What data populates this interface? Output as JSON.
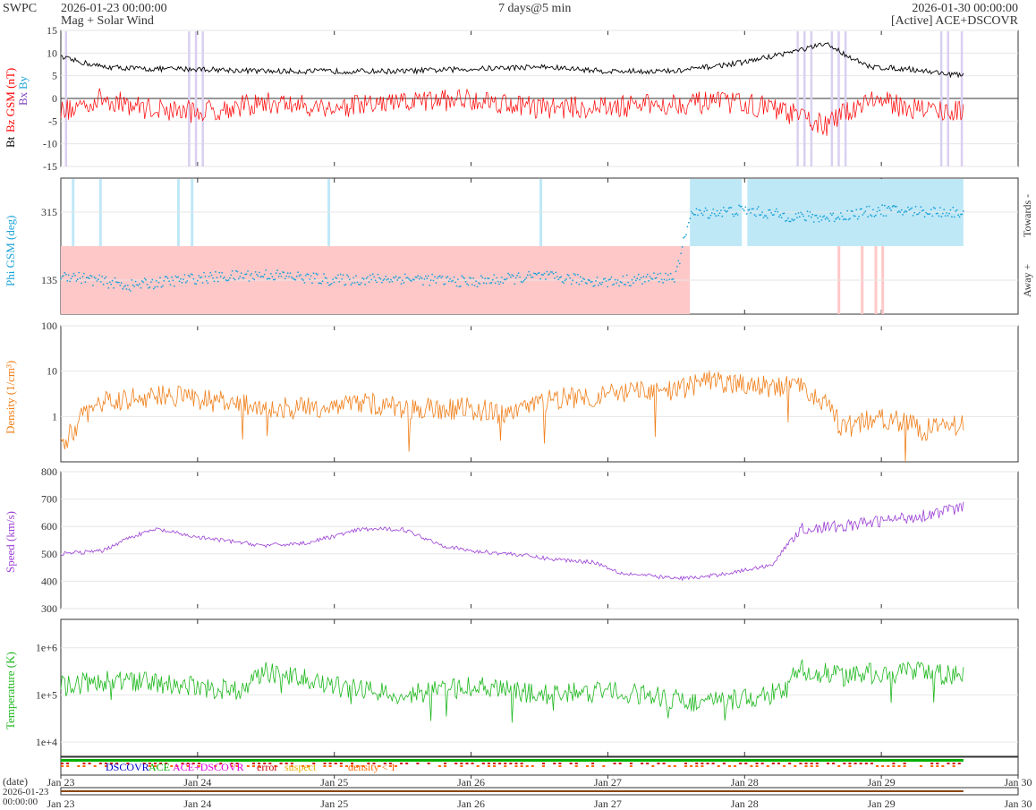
{
  "header": {
    "brand": "SWPC",
    "start_time": "2026-01-23 00:00:00",
    "product": "Mag + Solar Wind",
    "span": "7 days@5 min",
    "end_time": "2026-01-30 00:00:00",
    "source": "[Active] ACE+DSCOVR"
  },
  "colors": {
    "bt": "#000000",
    "bz": "#ff0000",
    "bx": "#7b3fbf",
    "by": "#1ea3d8",
    "phi": "#1ea3d8",
    "towards_shade": "#bfe8f7",
    "away_shade": "#ffc8c8",
    "density": "#f07f1a",
    "speed": "#9b3fd6",
    "temperature": "#1fb81f",
    "dscovr": "#0000cc",
    "ace": "#00b000",
    "ace_dscovr": "#e000e0",
    "error": "#cc0000",
    "suspect": "#e8b000",
    "density_lt1": "#ff6600"
  },
  "chart_data": [
    {
      "type": "line",
      "panel": "mag",
      "ylabel_parts": [
        "Bt",
        "Bz GSM (nT)",
        "Bx",
        "By"
      ],
      "ylim": [
        -15,
        15
      ],
      "yticks": [
        -15,
        -10,
        -5,
        0,
        5,
        10,
        15
      ],
      "grid": true,
      "series": [
        {
          "name": "Bt",
          "x_days": [
            0,
            0.3,
            0.6,
            1,
            1.5,
            2,
            2.5,
            3,
            3.5,
            4,
            4.5,
            5,
            5.3,
            5.6,
            5.9,
            6.2,
            6.6
          ],
          "values": [
            9,
            7,
            6.5,
            6.5,
            6,
            6,
            6,
            6.5,
            7,
            6,
            6,
            8,
            10,
            12,
            7,
            6.5,
            5
          ]
        },
        {
          "name": "Bz GSM",
          "x_days": [
            0,
            0.3,
            0.6,
            1,
            1.5,
            2,
            2.5,
            3,
            3.5,
            4,
            4.5,
            5,
            5.3,
            5.6,
            5.9,
            6.2,
            6.6
          ],
          "values": [
            -3,
            0,
            -2,
            -3,
            -1,
            -2,
            -1,
            0,
            -2,
            -2,
            -1,
            -1,
            -3,
            -6,
            0,
            -2,
            -3
          ]
        }
      ]
    },
    {
      "type": "scatter",
      "panel": "phi",
      "ylabel": "Phi GSM (deg)",
      "ylim": [
        45,
        405
      ],
      "yticks": [
        135,
        315
      ],
      "right_labels": [
        "Towards -",
        "Away +"
      ],
      "sector_boundaries_days": [
        4.6,
        4.98,
        5.02,
        6.6
      ],
      "x_days": [
        0,
        0.5,
        1,
        1.5,
        2,
        2.5,
        3,
        3.5,
        4,
        4.5,
        4.6,
        5,
        5.3,
        5.6,
        6,
        6.5
      ],
      "values": [
        150,
        120,
        140,
        150,
        135,
        140,
        130,
        145,
        130,
        145,
        310,
        320,
        305,
        300,
        320,
        315
      ]
    },
    {
      "type": "line",
      "panel": "density",
      "ylabel": "Density (1/cm³)",
      "scale": "log",
      "ylim": [
        0.1,
        100
      ],
      "yticks": [
        1,
        10,
        100
      ],
      "x_days": [
        0,
        0.1,
        0.3,
        0.5,
        0.8,
        1.2,
        1.5,
        1.8,
        2.2,
        2.5,
        3,
        3.3,
        3.6,
        4,
        4.3,
        4.5,
        4.7,
        5,
        5.2,
        5.4,
        5.7,
        6,
        6.3,
        6.6
      ],
      "values": [
        0.2,
        0.5,
        2,
        2.5,
        3,
        2,
        1.5,
        1.5,
        2,
        1.5,
        1.5,
        1,
        2.5,
        3,
        3.5,
        3.5,
        6,
        5,
        4.5,
        4.5,
        0.5,
        1,
        0.5,
        0.7
      ]
    },
    {
      "type": "line",
      "panel": "speed",
      "ylabel": "Speed (km/s)",
      "ylim": [
        300,
        800
      ],
      "yticks": [
        300,
        400,
        500,
        600,
        700,
        800
      ],
      "x_days": [
        0,
        0.3,
        0.5,
        0.7,
        1,
        1.5,
        1.8,
        2.2,
        2.5,
        2.8,
        3,
        3.3,
        3.6,
        3.9,
        4.1,
        4.3,
        4.5,
        4.7,
        5,
        5.2,
        5.4,
        5.7,
        6,
        6.3,
        6.6
      ],
      "values": [
        500,
        510,
        560,
        590,
        560,
        530,
        540,
        590,
        590,
        530,
        510,
        500,
        480,
        470,
        430,
        420,
        410,
        415,
        440,
        460,
        590,
        600,
        620,
        640,
        670
      ]
    },
    {
      "type": "line",
      "panel": "temperature",
      "ylabel": "Temperature (K)",
      "scale": "log",
      "ylim": [
        5000,
        4000000
      ],
      "yticks": [
        10000,
        100000,
        1000000
      ],
      "ytick_labels": [
        "1e+4",
        "1e+5",
        "1e+6"
      ],
      "x_days": [
        0,
        0.3,
        0.5,
        1,
        1.3,
        1.5,
        2,
        2.5,
        3,
        3.5,
        4,
        4.3,
        4.6,
        5,
        5.3,
        5.4,
        5.7,
        6,
        6.3,
        6.6
      ],
      "values": [
        150000,
        200000,
        200000,
        150000,
        120000,
        300000,
        150000,
        100000,
        150000,
        100000,
        120000,
        100000,
        70000,
        80000,
        120000,
        350000,
        250000,
        300000,
        300000,
        250000
      ]
    },
    {
      "type": "bar",
      "panel": "source_flags",
      "legend": [
        "DSCOVR",
        "ACE",
        "ACE+DSCOVR",
        "error",
        "suspect",
        "density < 1"
      ],
      "x_days_end": 6.6
    }
  ],
  "xaxis": {
    "tick_labels": [
      "Jan 23",
      "Jan 24",
      "Jan 25",
      "Jan 26",
      "Jan 27",
      "Jan 28",
      "Jan 29",
      "Jan 30"
    ],
    "date_label": "(date)",
    "range_start": "2026-01-23",
    "range_start_time": "00:00:00"
  }
}
